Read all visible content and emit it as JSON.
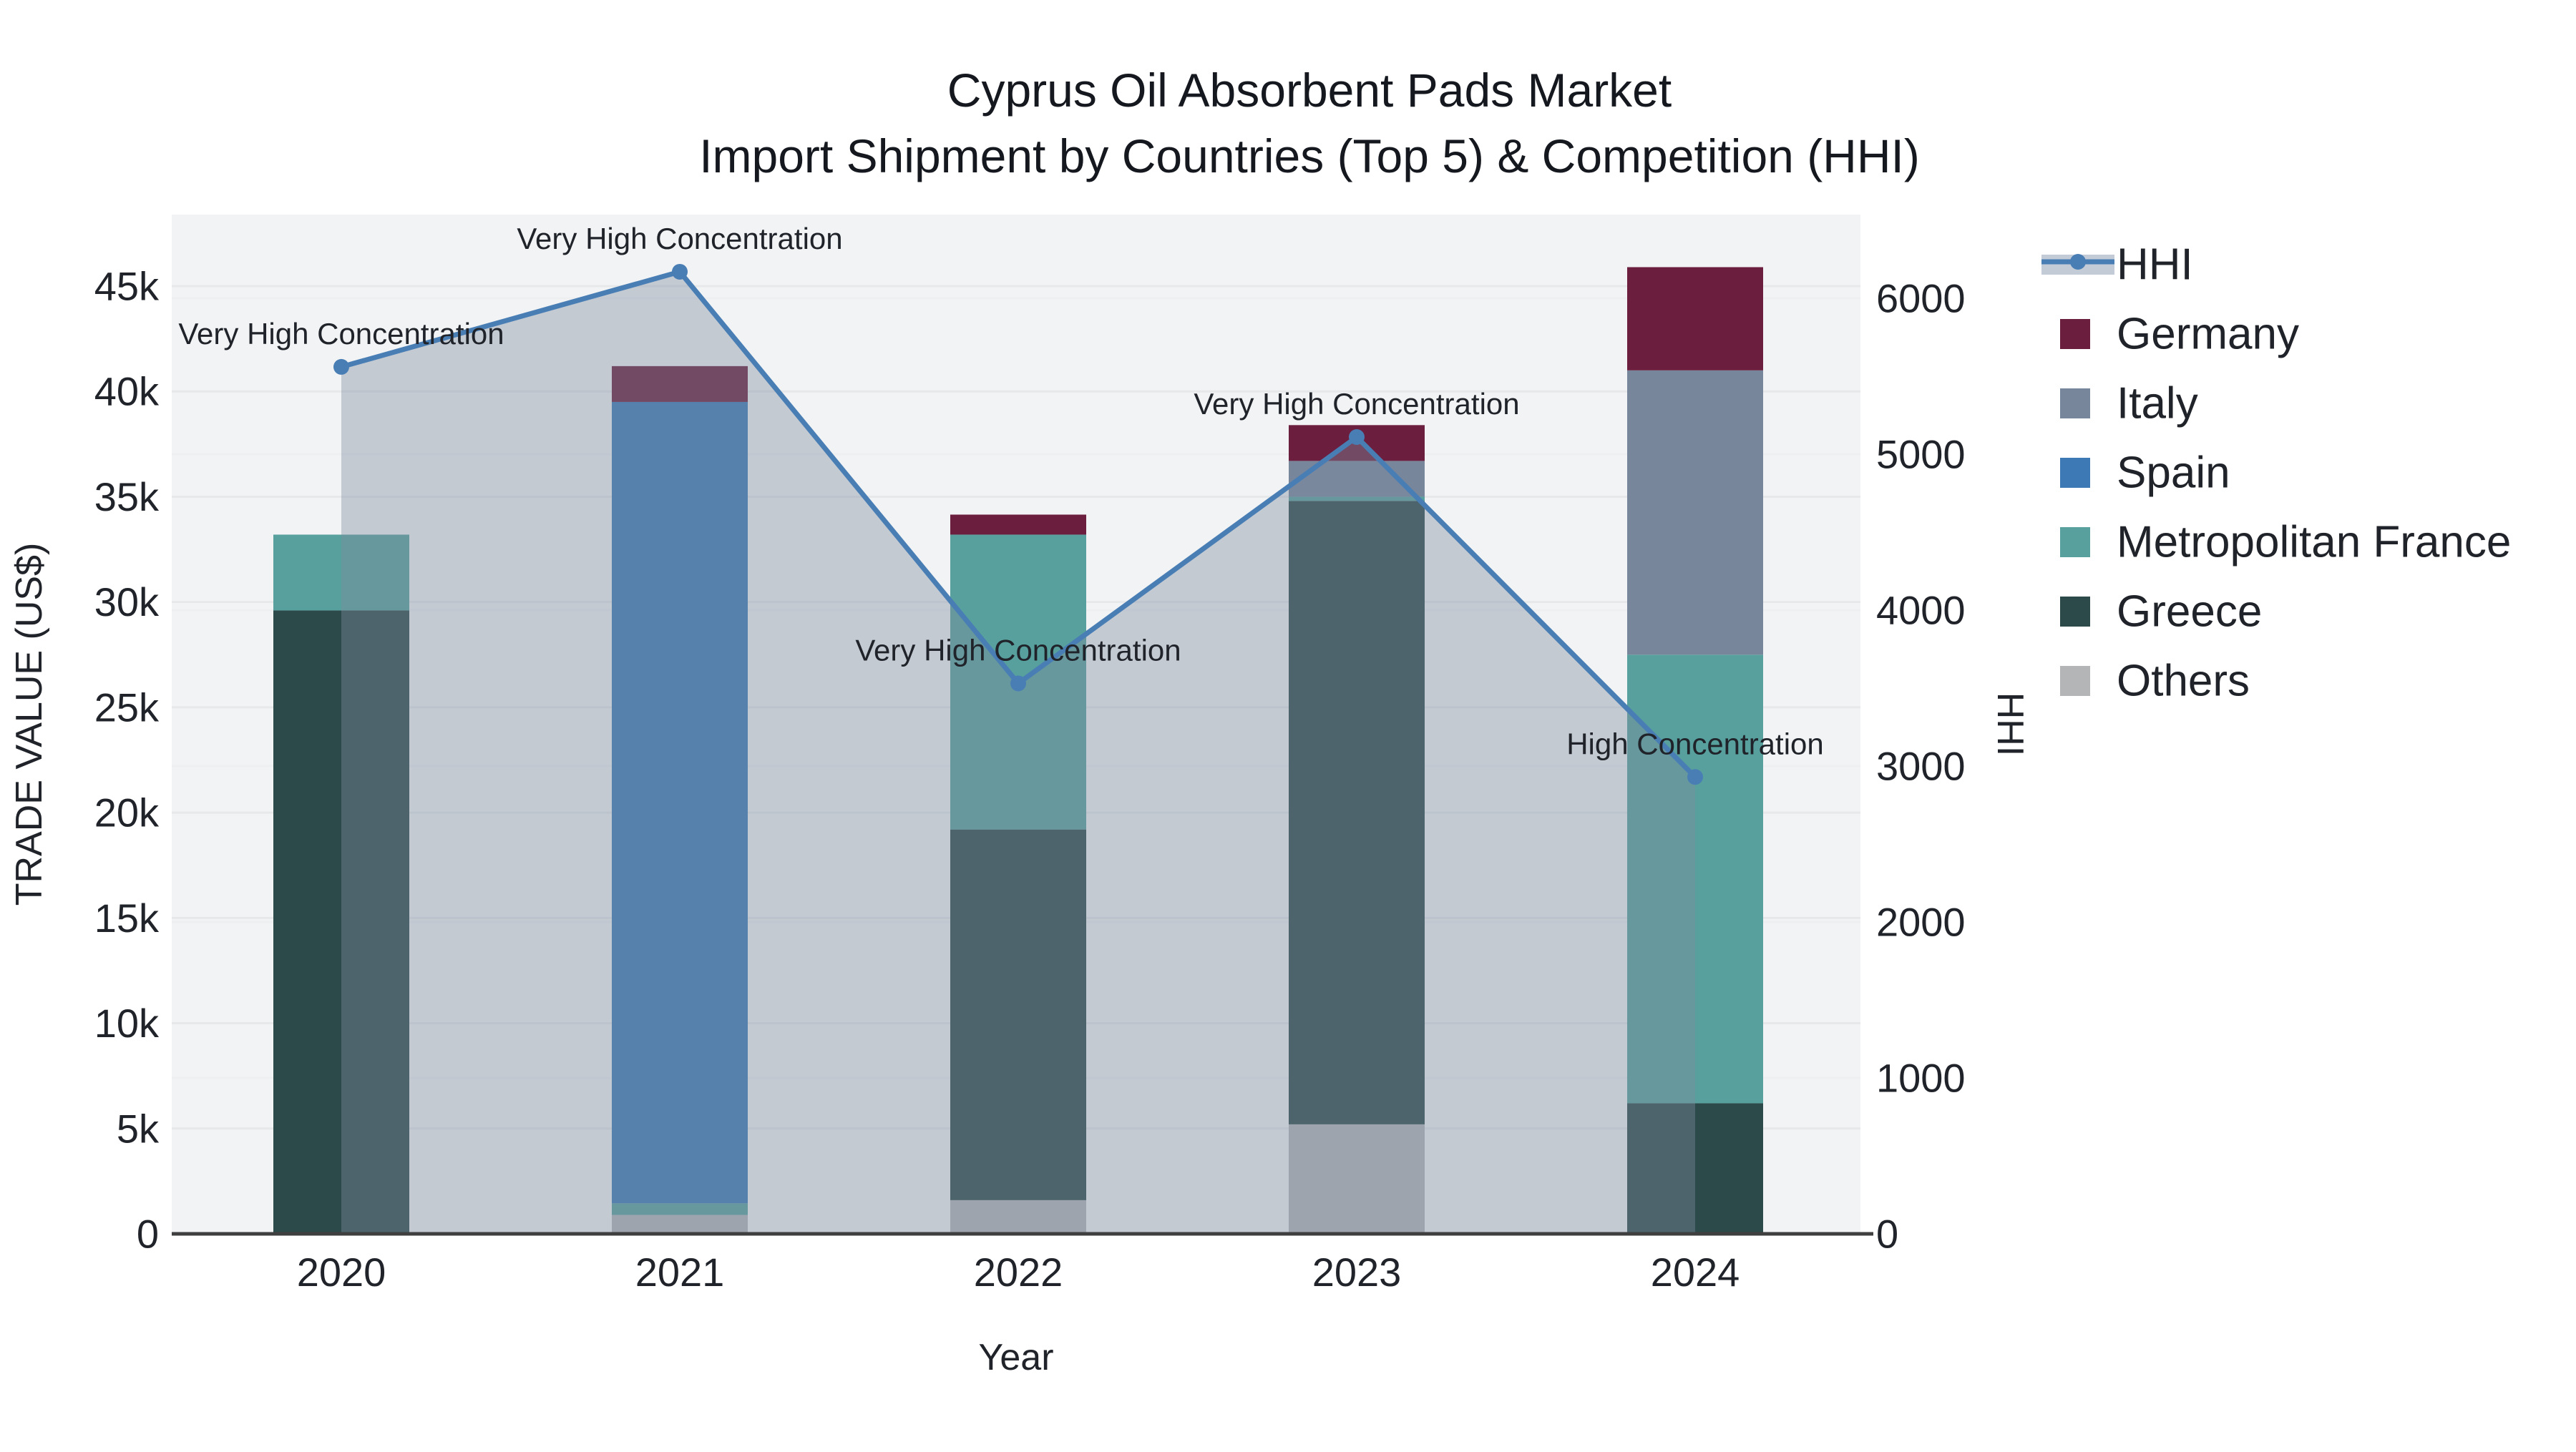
{
  "title": {
    "line1": "Cyprus Oil Absorbent Pads Market",
    "line2": "Import Shipment by Countries (Top 5) & Competition (HHI)"
  },
  "chart_data": {
    "type": "bar",
    "subtype": "stacked-bar-with-line",
    "categories": [
      "2020",
      "2021",
      "2022",
      "2023",
      "2024"
    ],
    "bar_series": [
      {
        "name": "Others",
        "color": "#b3b5b6",
        "values": [
          0,
          900,
          1600,
          5200,
          0
        ]
      },
      {
        "name": "Greece",
        "color": "#2d4a4a",
        "values": [
          29600,
          0,
          17600,
          29600,
          6200
        ]
      },
      {
        "name": "Metropolitan France",
        "color": "#57a09d",
        "values": [
          3600,
          550,
          14000,
          200,
          21300
        ]
      },
      {
        "name": "Spain",
        "color": "#3d7ab5",
        "values": [
          0,
          38050,
          0,
          0,
          0
        ]
      },
      {
        "name": "Italy",
        "color": "#78869b",
        "values": [
          0,
          0,
          0,
          1700,
          13500
        ]
      },
      {
        "name": "Germany",
        "color": "#6b1e3d",
        "values": [
          0,
          1700,
          950,
          1700,
          4900
        ]
      }
    ],
    "line_series": {
      "name": "HHI",
      "color": "#497eb5",
      "area_fill_color": "rgba(125,140,160,0.40)",
      "values": [
        5560,
        6170,
        3530,
        5110,
        2930
      ]
    },
    "annotations": [
      {
        "x": "2020",
        "text": "Very High Concentration"
      },
      {
        "x": "2021",
        "text": "Very High Concentration"
      },
      {
        "x": "2022",
        "text": "Very High Concentration"
      },
      {
        "x": "2023",
        "text": "Very High Concentration"
      },
      {
        "x": "2024",
        "text": "High Concentration"
      }
    ],
    "xlabel": "Year",
    "ylabel_left": "TRADE VALUE (US$)",
    "ylabel_right": "HHI",
    "yaxis_left": {
      "min": 0,
      "max": 45000,
      "step": 5000,
      "tick_values": [
        0,
        5000,
        10000,
        15000,
        20000,
        25000,
        30000,
        35000,
        40000,
        45000
      ],
      "tick_labels": [
        "0",
        "5k",
        "10k",
        "15k",
        "20k",
        "25k",
        "30k",
        "35k",
        "40k",
        "45k"
      ]
    },
    "yaxis_right": {
      "min": 0,
      "max": 6000,
      "step": 1000,
      "tick_values": [
        0,
        1000,
        2000,
        3000,
        4000,
        5000,
        6000
      ],
      "tick_labels": [
        "0",
        "1000",
        "2000",
        "3000",
        "4000",
        "5000",
        "6000"
      ]
    },
    "legend_order": [
      "HHI",
      "Germany",
      "Italy",
      "Spain",
      "Metropolitan France",
      "Greece",
      "Others"
    ],
    "plot_bg_color": "#f2f3f4",
    "grid_color_left": "#e6e8ea",
    "grid_color_right": "#edeff1",
    "axis_line_color": "#3f3f3f",
    "grid": true,
    "legend_position": "right"
  }
}
